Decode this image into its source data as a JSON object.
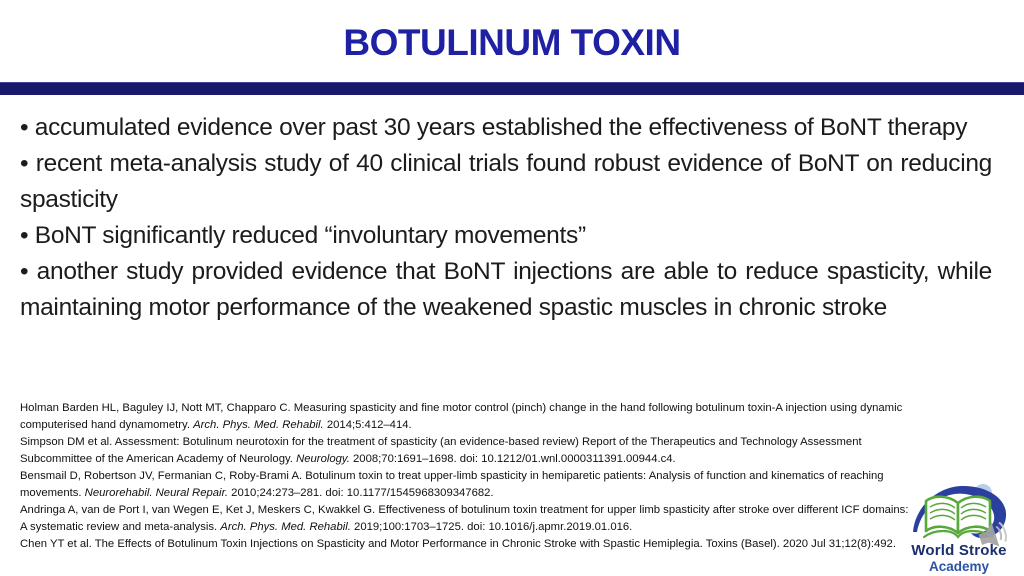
{
  "slide_title": "BOTULINUM TOXIN",
  "bullet_char": "•",
  "bullets": [
    "accumulated evidence over past 30 years established the effectiveness of BoNT therapy",
    "recent meta-analysis study of 40 clinical trials found robust evidence of BoNT on reducing spasticity",
    "BoNT significantly reduced “involuntary movements”",
    "another study provided evidence that BoNT injections are able to reduce spasticity, while maintaining motor performance of the weakened spastic muscles in chronic stroke"
  ],
  "references": [
    {
      "segments": [
        {
          "text": "Holman Barden HL, Baguley IJ, Nott MT, Chapparo C. Measuring spasticity and fine motor control (pinch) change in the hand following botulinum toxin-A injection using dynamic computerised hand dynamometry. ",
          "italic": false
        },
        {
          "text": "Arch. Phys. Med. Rehabil.",
          "italic": true
        },
        {
          "text": " 2014;5:412–414.",
          "italic": false
        }
      ]
    },
    {
      "segments": [
        {
          "text": "Simpson DM et al. Assessment: Botulinum neurotoxin for the treatment of spasticity (an evidence-based review) Report of the Therapeutics and Technology Assessment Subcommittee of the American Academy of Neurology. ",
          "italic": false
        },
        {
          "text": "Neurology.",
          "italic": true
        },
        {
          "text": " 2008;70:1691–1698. doi: 10.1212/01.wnl.0000311391.00944.c4.",
          "italic": false
        }
      ]
    },
    {
      "segments": [
        {
          "text": "Bensmail D, Robertson JV, Fermanian C, Roby-Brami A. Botulinum toxin to treat upper-limb spasticity in hemiparetic patients: Analysis of function and kinematics of reaching movements. ",
          "italic": false
        },
        {
          "text": "Neurorehabil. Neural Repair.",
          "italic": true
        },
        {
          "text": " 2010;24:273–281. doi: 10.1177/1545968309347682.",
          "italic": false
        }
      ]
    },
    {
      "segments": [
        {
          "text": "Andringa A, van de Port I, van Wegen E, Ket J, Meskers C, Kwakkel G. Effectiveness of botulinum toxin treatment for upper limb spasticity after stroke over different ICF domains: A systematic review and meta-analysis. ",
          "italic": false
        },
        {
          "text": "Arch. Phys. Med. Rehabil.",
          "italic": true
        },
        {
          "text": " 2019;100:1703–1725. doi: 10.1016/j.apmr.2019.01.016.",
          "italic": false
        }
      ]
    },
    {
      "segments": [
        {
          "text": "Chen YT et al. The Effects of Botulinum Toxin Injections on Spasticity and Motor Performance in Chronic Stroke with Spastic Hemiplegia. Toxins (Basel). 2020 Jul 31;12(8):492.",
          "italic": false
        }
      ]
    }
  ],
  "logo": {
    "line1": "World Stroke",
    "line2": "Academy",
    "icon": "open-book-with-blue-swoosh",
    "overlay_icon": "audio-speaker"
  },
  "colors": {
    "title": "#1f21a5",
    "divider": "#1a1a6d",
    "body_text": "#1c1c1c",
    "logo_navy": "#1b2f6e",
    "logo_blue": "#2b52a5",
    "book_green": "#58a83c",
    "swoosh_blue": "#2b3f9e",
    "speaker_grey": "#a3a3a3",
    "blob_blue": "#b7d0e9"
  }
}
